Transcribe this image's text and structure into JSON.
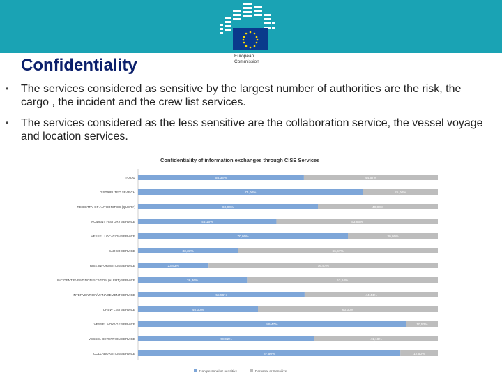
{
  "slide": {
    "title": "Confidentiality",
    "bullets": [
      "The services considered as sensitive by the largest number of authorities are the risk, the cargo , the incident and the crew list services.",
      "The services considered as the less sensitive are the collaboration service, the vessel voyage and location services."
    ]
  },
  "logo": {
    "line1": "European",
    "line2": "Commission"
  },
  "colors": {
    "banner": "#1aa3b4",
    "series_blue": "#7ea6d8",
    "series_gray": "#bdbdbd",
    "title": "#0b1f6b"
  },
  "chart_data": {
    "type": "bar",
    "orientation": "horizontal-stacked-100",
    "title": "Confidentiality of information exchanges through CISE Services",
    "categories": [
      "TOTAL",
      "DISTRIBUTED SEARCH",
      "REGISTRY OF AUTHORITIES (QUERY)",
      "INCIDENT HISTORY SERVICE",
      "VESSEL LOCATION SERVICE",
      "CARGO SERVICE",
      "RISK INFORMATION SERVICE",
      "INCIDENT/EVENT NOTIFICATION (ALERT) SERVICE",
      "INTERVENTION/MANAGEMENT SERVICE",
      "CREW LIST SERVICE",
      "VESSEL VOYAGE SERVICE",
      "VESSEL DETENTION SERVICE",
      "COLLABORATION SERVICE"
    ],
    "series": [
      {
        "name": "Non personal or sensitive",
        "values": [
          55.33,
          75.0,
          60.0,
          46.15,
          70.0,
          33.33,
          23.53,
          36.36,
          55.56,
          40.0,
          89.47,
          58.82,
          87.5
        ],
        "labels": [
          "55,33%",
          "75,00%",
          "60,00%",
          "46,15%",
          "70,00%",
          "33,33%",
          "23,53%",
          "36,36%",
          "55,56%",
          "40,00%",
          "89,47%",
          "58,82%",
          "87,50%"
        ]
      },
      {
        "name": "Personal or Sensitive",
        "values": [
          44.67,
          25.0,
          40.0,
          53.85,
          30.0,
          66.67,
          76.47,
          63.64,
          44.44,
          60.0,
          10.53,
          41.18,
          12.5
        ],
        "labels": [
          "44,67%",
          "25,00%",
          "40,00%",
          "53,85%",
          "30,00%",
          "66,67%",
          "76,47%",
          "63,64%",
          "44,44%",
          "60,00%",
          "10,53%",
          "41,18%",
          "12,50%"
        ]
      }
    ],
    "xlim": [
      0,
      100
    ],
    "legend": "bottom"
  }
}
